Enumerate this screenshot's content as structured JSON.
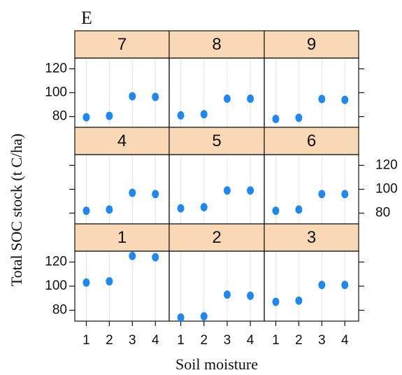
{
  "label": "E",
  "ylabel": "Total  SOC stock (t C/ha)",
  "xlabel": "Soil moisture",
  "chart_data": [
    {
      "type": "scatter",
      "title": "7",
      "x": [
        1,
        2,
        3,
        4
      ],
      "values": [
        79.4,
        80.6,
        97,
        96.5
      ],
      "color": "#1e88f0",
      "xlim": [
        0.5,
        4.6
      ],
      "ylim": [
        71,
        129
      ],
      "xticks": [
        1,
        2,
        3,
        4
      ],
      "yticks": [
        80,
        100,
        120
      ],
      "grid": true
    },
    {
      "type": "scatter",
      "title": "8",
      "x": [
        1,
        2,
        3,
        4
      ],
      "values": [
        81,
        82,
        95,
        95
      ],
      "color": "#1e88f0",
      "xlim": [
        0.5,
        4.6
      ],
      "ylim": [
        71,
        129
      ],
      "xticks": [
        1,
        2,
        3,
        4
      ],
      "yticks": [
        80,
        100,
        120
      ],
      "grid": true
    },
    {
      "type": "scatter",
      "title": "9",
      "x": [
        1,
        2,
        3,
        4
      ],
      "values": [
        78,
        79,
        94.7,
        94
      ],
      "color": "#1e88f0",
      "xlim": [
        0.5,
        4.6
      ],
      "ylim": [
        71,
        129
      ],
      "xticks": [
        1,
        2,
        3,
        4
      ],
      "yticks": [
        80,
        100,
        120
      ],
      "grid": true
    },
    {
      "type": "scatter",
      "title": "4",
      "x": [
        1,
        2,
        3,
        4
      ],
      "values": [
        82,
        83,
        97,
        96
      ],
      "color": "#1e88f0",
      "xlim": [
        0.5,
        4.6
      ],
      "ylim": [
        71,
        129
      ],
      "xticks": [
        1,
        2,
        3,
        4
      ],
      "yticks": [
        80,
        100,
        120
      ],
      "grid": true
    },
    {
      "type": "scatter",
      "title": "5",
      "x": [
        1,
        2,
        3,
        4
      ],
      "values": [
        84,
        85,
        99,
        99
      ],
      "color": "#1e88f0",
      "xlim": [
        0.5,
        4.6
      ],
      "ylim": [
        71,
        129
      ],
      "xticks": [
        1,
        2,
        3,
        4
      ],
      "yticks": [
        80,
        100,
        120
      ],
      "grid": true
    },
    {
      "type": "scatter",
      "title": "6",
      "x": [
        1,
        2,
        3,
        4
      ],
      "values": [
        82,
        83,
        96,
        96
      ],
      "color": "#1e88f0",
      "xlim": [
        0.5,
        4.6
      ],
      "ylim": [
        71,
        129
      ],
      "xticks": [
        1,
        2,
        3,
        4
      ],
      "yticks": [
        80,
        100,
        120
      ],
      "grid": true
    },
    {
      "type": "scatter",
      "title": "1",
      "x": [
        1,
        2,
        3,
        4
      ],
      "values": [
        103,
        104,
        125,
        124
      ],
      "color": "#1e88f0",
      "xlim": [
        0.5,
        4.6
      ],
      "ylim": [
        71,
        129
      ],
      "xticks": [
        1,
        2,
        3,
        4
      ],
      "yticks": [
        80,
        100,
        120
      ],
      "grid": true
    },
    {
      "type": "scatter",
      "title": "2",
      "x": [
        1,
        2,
        3,
        4
      ],
      "values": [
        74,
        75,
        93,
        92
      ],
      "color": "#1e88f0",
      "xlim": [
        0.5,
        4.6
      ],
      "ylim": [
        71,
        129
      ],
      "xticks": [
        1,
        2,
        3,
        4
      ],
      "yticks": [
        80,
        100,
        120
      ],
      "grid": true
    },
    {
      "type": "scatter",
      "title": "3",
      "x": [
        1,
        2,
        3,
        4
      ],
      "values": [
        87,
        88,
        101,
        101
      ],
      "color": "#1e88f0",
      "xlim": [
        0.5,
        4.6
      ],
      "ylim": [
        71,
        129
      ],
      "xticks": [
        1,
        2,
        3,
        4
      ],
      "yticks": [
        80,
        100,
        120
      ],
      "grid": true
    }
  ]
}
